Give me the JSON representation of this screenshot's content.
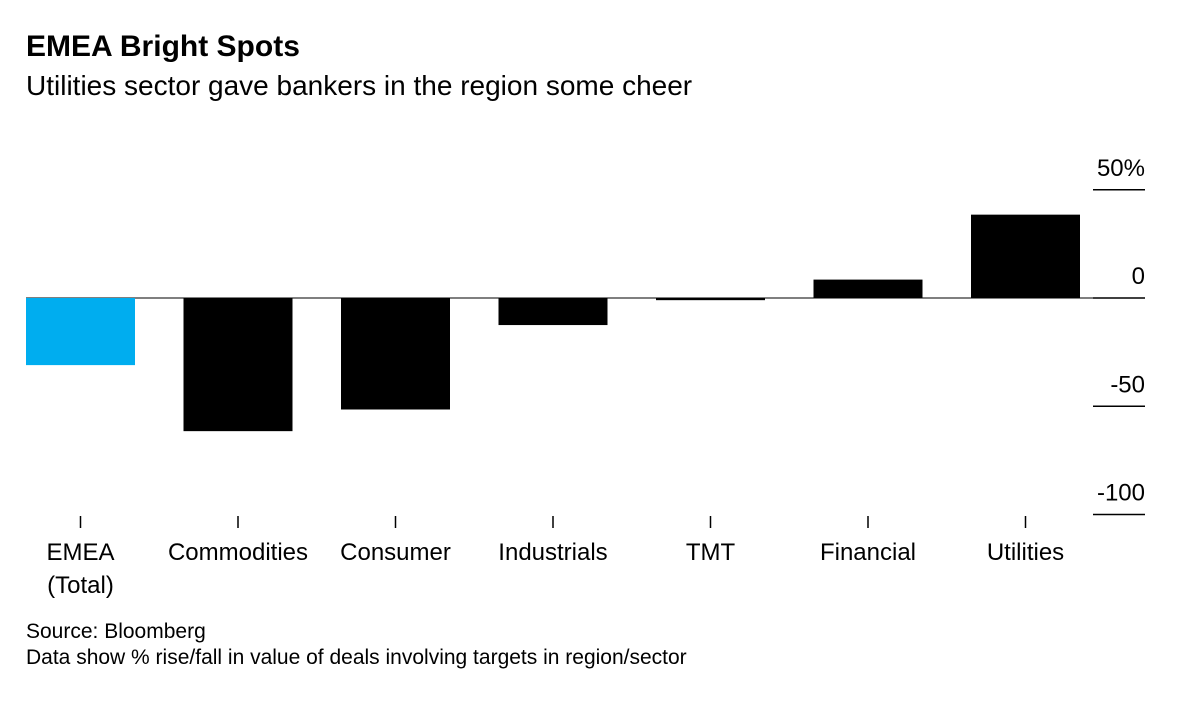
{
  "title": "EMEA Bright Spots",
  "subtitle": "Utilities sector gave bankers in the region some cheer",
  "source": "Source: Bloomberg",
  "note": "Data show % rise/fall in value of deals involving targets in region/sector",
  "chart_data": {
    "type": "bar",
    "title": "EMEA Bright Spots",
    "subtitle": "Utilities sector gave bankers in the region some cheer",
    "categories": [
      "EMEA\n(Total)",
      "Commodities",
      "Consumer",
      "Industrials",
      "TMT",
      "Financial",
      "Utilities"
    ],
    "values": [
      -31,
      -61.5,
      -51.5,
      -12.5,
      -1,
      8.5,
      38.5
    ],
    "colors": [
      "#00adef",
      "#000000",
      "#000000",
      "#000000",
      "#000000",
      "#000000",
      "#000000"
    ],
    "ylim": [
      -100,
      50
    ],
    "yticks": [
      50,
      0,
      -50,
      -100
    ],
    "ytick_labels": [
      "50%",
      "0",
      "-50",
      "-100"
    ],
    "yaxis_position": "right",
    "grid": true,
    "xlabel": "",
    "ylabel": ""
  }
}
